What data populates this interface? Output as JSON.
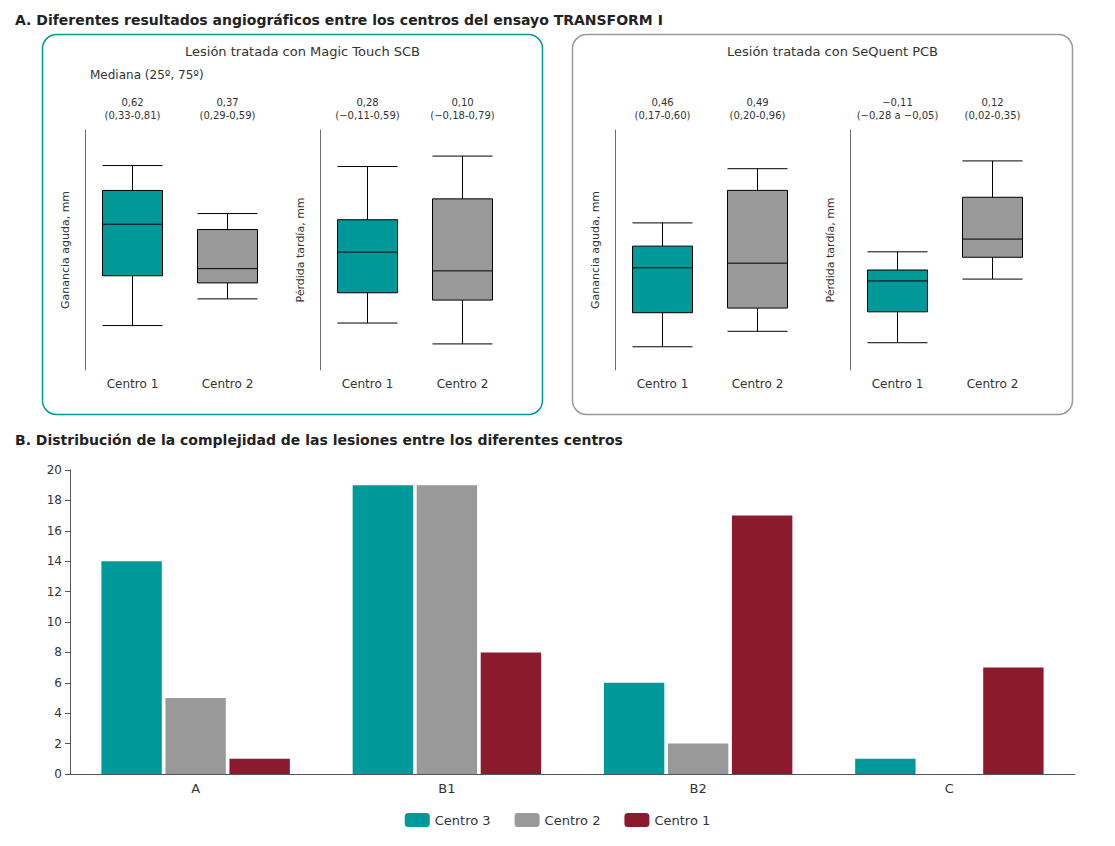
{
  "chart_data": [
    {
      "type": "boxplot",
      "title": "A. Diferentes resultados angiográficos entre los centros del ensayo TRANSFORM I",
      "subtitle": "Lesión tratada con Magic Touch SCB",
      "annotations": [
        "Mediana (25º, 75º)"
      ],
      "categories": [
        "Centro 1",
        "Centro 2"
      ],
      "values": [
        [
          0.05,
          0.33,
          0.62,
          0.81,
          0.95
        ],
        [
          0.2,
          0.29,
          0.37,
          0.59,
          0.68
        ]
      ],
      "value_labels": [
        "0,62\n(0,33-0,81)",
        "0,37\n(0,29-0,59)"
      ],
      "colors": [
        "#009999",
        "#999999"
      ],
      "ylabel": "Ganancia aguda, mm",
      "ylim": [
        -0.2,
        1.15
      ],
      "tick_labels": "x",
      "grid": false
    },
    {
      "type": "boxplot",
      "categories": [
        "Centro 1",
        "Centro 2"
      ],
      "values": [
        [
          -0.4,
          -0.11,
          0.28,
          0.59,
          1.1
        ],
        [
          -0.6,
          -0.18,
          0.1,
          0.79,
          1.2
        ]
      ],
      "value_labels": [
        "0,28\n(−0,11-0,59)",
        "0,10\n(−0,18-0,79)"
      ],
      "colors": [
        "#009999",
        "#999999"
      ],
      "ylabel": "Pérdida tardía, mm",
      "ylim": [
        -0.85,
        1.45
      ],
      "tick_labels": "x",
      "grid": false
    },
    {
      "type": "boxplot",
      "subtitle": "Lesión tratada con SeQuent PCB",
      "categories": [
        "Centro 1",
        "Centro 2"
      ],
      "values": [
        [
          -0.05,
          0.17,
          0.46,
          0.6,
          0.75
        ],
        [
          0.05,
          0.2,
          0.49,
          0.96,
          1.1
        ]
      ],
      "value_labels": [
        "0,46\n(0,17-0,60)",
        "0,49\n(0,20-0,96)"
      ],
      "colors": [
        "#009999",
        "#999999"
      ],
      "ylabel": "Ganancia aguda, mm",
      "ylim": [
        -0.2,
        1.35
      ],
      "tick_labels": "x",
      "grid": false
    },
    {
      "type": "boxplot",
      "categories": [
        "Centro 1",
        "Centro 2"
      ],
      "values": [
        [
          -0.45,
          -0.28,
          -0.11,
          -0.05,
          0.05
        ],
        [
          -0.1,
          0.02,
          0.12,
          0.35,
          0.55
        ]
      ],
      "value_labels": [
        "−0,11\n(−0,28 a −0,05)",
        "0,12\n(0,02-0,35)"
      ],
      "colors": [
        "#009999",
        "#999999"
      ],
      "ylabel": "Pérdida tardía, mm",
      "ylim": [
        -0.6,
        0.72
      ],
      "tick_labels": "x",
      "grid": false
    },
    {
      "type": "bar",
      "title": "B. Distribución de la complejidad de las lesiones entre los diferentes centros",
      "categories": [
        "A",
        "B1",
        "B2",
        "C"
      ],
      "series": [
        {
          "name": "Centro 3",
          "color": "#009999",
          "values": [
            14,
            19,
            6,
            1
          ]
        },
        {
          "name": "Centro 2",
          "color": "#999999",
          "values": [
            5,
            19,
            2,
            0
          ]
        },
        {
          "name": "Centro 1",
          "color": "#8B1A2E",
          "values": [
            1,
            8,
            17,
            7
          ]
        }
      ],
      "ylim": [
        0,
        20
      ],
      "yticks": [
        0,
        2,
        4,
        6,
        8,
        10,
        12,
        14,
        16,
        18,
        20
      ],
      "legend": "bottom",
      "grid": false
    }
  ]
}
